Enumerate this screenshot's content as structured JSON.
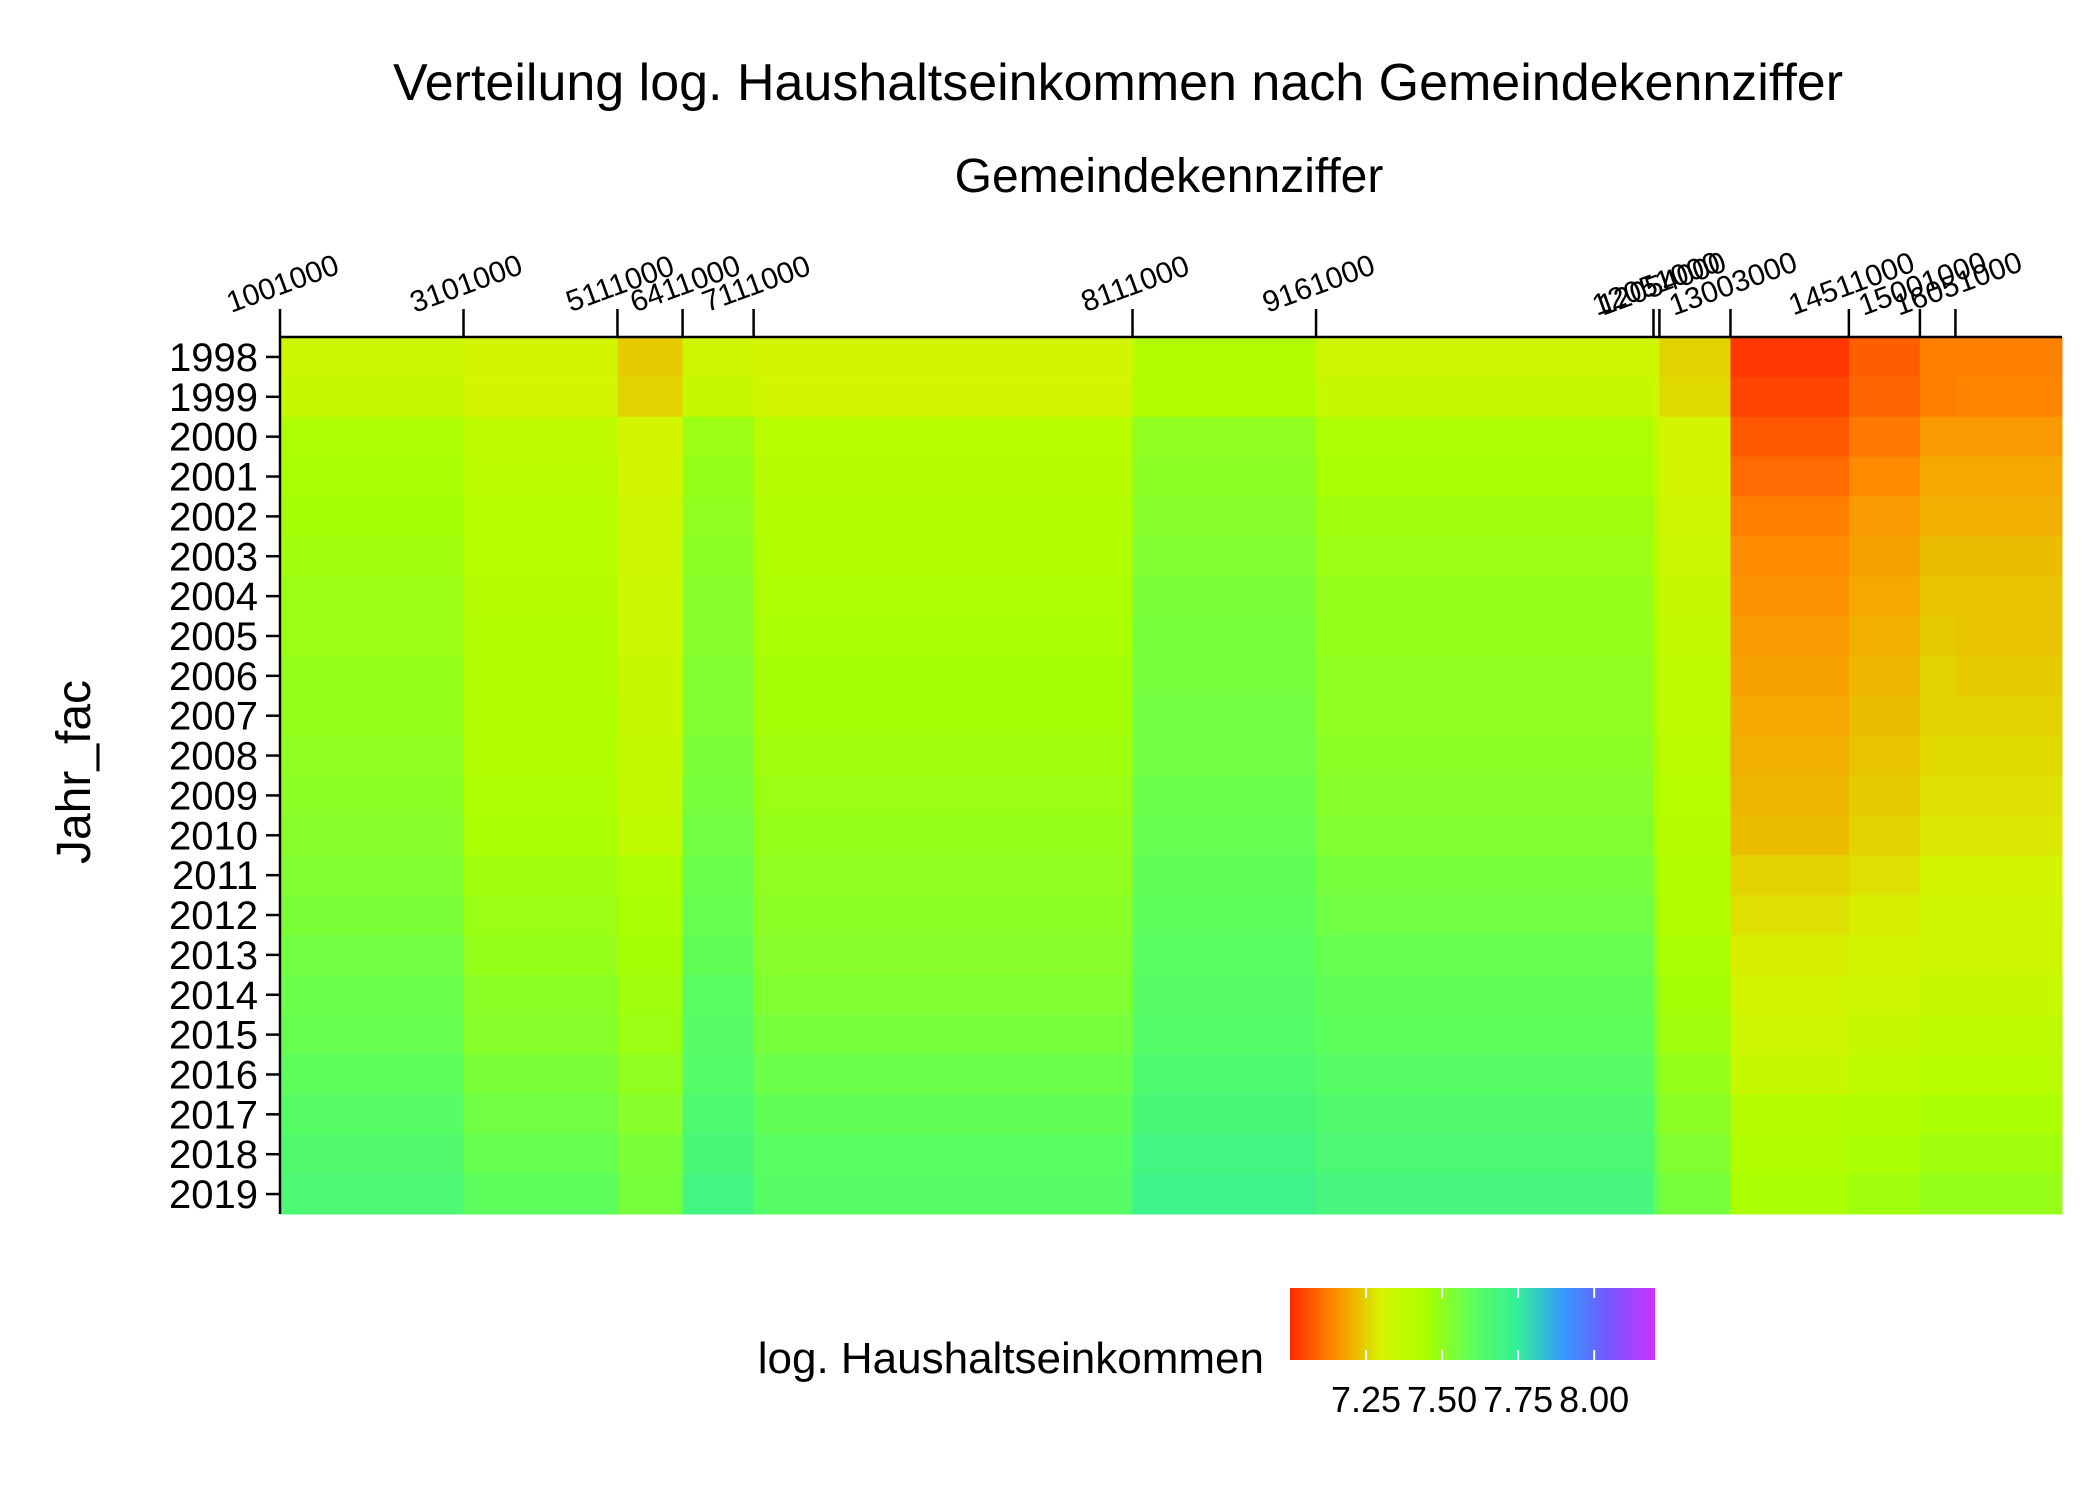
{
  "chart_data": {
    "type": "heatmap",
    "title": "Verteilung log. Haushaltseinkommen nach Gemeindekennziffer",
    "xlabel": "Gemeindekennziffer",
    "ylabel": "Jahr_fac",
    "x_axis_position": "top",
    "x_tick_labels": [
      "1001000",
      "3101000",
      "5111000",
      "6411000",
      "7111000",
      "8111000",
      "9161000",
      "12051000",
      "12054000",
      "13003000",
      "14511000",
      "15001000",
      "16051000"
    ],
    "x_tick_units": [
      0,
      31,
      57,
      68,
      80,
      144,
      175,
      232,
      233,
      245,
      265,
      277,
      283
    ],
    "x_units_total": 301,
    "y": [
      "1998",
      "1999",
      "2000",
      "2001",
      "2002",
      "2003",
      "2004",
      "2005",
      "2006",
      "2007",
      "2008",
      "2009",
      "2010",
      "2011",
      "2012",
      "2013",
      "2014",
      "2015",
      "2016",
      "2017",
      "2018",
      "2019"
    ],
    "columns": [
      "1001000",
      "3101000",
      "5111000",
      "6411000",
      "7111000",
      "8111000",
      "9161000",
      "12051000",
      "12054000",
      "13003000",
      "14511000",
      "15001000",
      "16051000"
    ],
    "column_units": [
      0,
      31,
      57,
      68,
      80,
      144,
      175,
      232,
      233,
      245,
      265,
      277,
      283
    ],
    "values": [
      [
        7.34,
        7.3,
        7.24,
        7.33,
        7.3,
        7.42,
        7.33,
        7.3,
        7.25,
        7.02,
        7.08,
        7.13,
        7.13
      ],
      [
        7.35,
        7.31,
        7.25,
        7.35,
        7.31,
        7.43,
        7.35,
        7.31,
        7.26,
        7.04,
        7.09,
        7.13,
        7.14
      ],
      [
        7.44,
        7.38,
        7.3,
        7.48,
        7.4,
        7.5,
        7.44,
        7.36,
        7.3,
        7.07,
        7.12,
        7.17,
        7.17
      ],
      [
        7.45,
        7.39,
        7.31,
        7.49,
        7.41,
        7.51,
        7.45,
        7.38,
        7.31,
        7.1,
        7.15,
        7.19,
        7.19
      ],
      [
        7.46,
        7.4,
        7.32,
        7.5,
        7.42,
        7.52,
        7.47,
        7.39,
        7.32,
        7.13,
        7.17,
        7.2,
        7.2
      ],
      [
        7.47,
        7.4,
        7.33,
        7.51,
        7.43,
        7.53,
        7.48,
        7.4,
        7.34,
        7.15,
        7.18,
        7.22,
        7.22
      ],
      [
        7.48,
        7.41,
        7.34,
        7.52,
        7.44,
        7.54,
        7.49,
        7.41,
        7.35,
        7.16,
        7.19,
        7.23,
        7.23
      ],
      [
        7.48,
        7.42,
        7.34,
        7.52,
        7.45,
        7.55,
        7.49,
        7.42,
        7.36,
        7.17,
        7.2,
        7.24,
        7.23
      ],
      [
        7.49,
        7.42,
        7.35,
        7.53,
        7.46,
        7.55,
        7.5,
        7.42,
        7.37,
        7.18,
        7.21,
        7.25,
        7.24
      ],
      [
        7.49,
        7.43,
        7.35,
        7.53,
        7.46,
        7.56,
        7.5,
        7.43,
        7.38,
        7.19,
        7.22,
        7.25,
        7.25
      ],
      [
        7.5,
        7.43,
        7.36,
        7.54,
        7.47,
        7.56,
        7.51,
        7.44,
        7.39,
        7.2,
        7.23,
        7.26,
        7.26
      ],
      [
        7.51,
        7.44,
        7.36,
        7.55,
        7.48,
        7.57,
        7.52,
        7.44,
        7.4,
        7.21,
        7.24,
        7.27,
        7.27
      ],
      [
        7.52,
        7.45,
        7.37,
        7.56,
        7.49,
        7.58,
        7.53,
        7.45,
        7.41,
        7.22,
        7.25,
        7.28,
        7.28
      ],
      [
        7.53,
        7.47,
        7.44,
        7.57,
        7.5,
        7.59,
        7.55,
        7.47,
        7.42,
        7.25,
        7.27,
        7.3,
        7.3
      ],
      [
        7.54,
        7.48,
        7.45,
        7.58,
        7.51,
        7.6,
        7.56,
        7.48,
        7.43,
        7.27,
        7.29,
        7.32,
        7.32
      ],
      [
        7.56,
        7.49,
        7.46,
        7.59,
        7.52,
        7.61,
        7.58,
        7.49,
        7.45,
        7.29,
        7.31,
        7.33,
        7.33
      ],
      [
        7.57,
        7.51,
        7.47,
        7.61,
        7.53,
        7.62,
        7.59,
        7.51,
        7.46,
        7.31,
        7.33,
        7.35,
        7.35
      ],
      [
        7.58,
        7.52,
        7.48,
        7.62,
        7.55,
        7.63,
        7.6,
        7.52,
        7.47,
        7.33,
        7.35,
        7.37,
        7.37
      ],
      [
        7.6,
        7.54,
        7.5,
        7.63,
        7.57,
        7.65,
        7.62,
        7.54,
        7.49,
        7.35,
        7.38,
        7.4,
        7.4
      ],
      [
        7.62,
        7.56,
        7.52,
        7.65,
        7.59,
        7.67,
        7.64,
        7.56,
        7.51,
        7.41,
        7.43,
        7.45,
        7.45
      ],
      [
        7.64,
        7.58,
        7.54,
        7.67,
        7.61,
        7.69,
        7.66,
        7.58,
        7.53,
        7.43,
        7.45,
        7.47,
        7.47
      ],
      [
        7.66,
        7.6,
        7.55,
        7.69,
        7.62,
        7.71,
        7.68,
        7.6,
        7.55,
        7.45,
        7.47,
        7.49,
        7.49
      ]
    ],
    "colorbar": {
      "title": "log. Haushaltseinkommen",
      "ticks": [
        "7.25",
        "7.50",
        "7.75",
        "8.00"
      ],
      "tick_values": [
        7.25,
        7.5,
        7.75,
        8.0
      ],
      "range": [
        7.0,
        8.2
      ],
      "colors": [
        "#ff2a00",
        "#ff8c00",
        "#d4f500",
        "#aaff00",
        "#5cff5c",
        "#33ee99",
        "#3399ff",
        "#7755ff",
        "#cc33ff"
      ],
      "placement": "bottom"
    },
    "grid": false
  }
}
